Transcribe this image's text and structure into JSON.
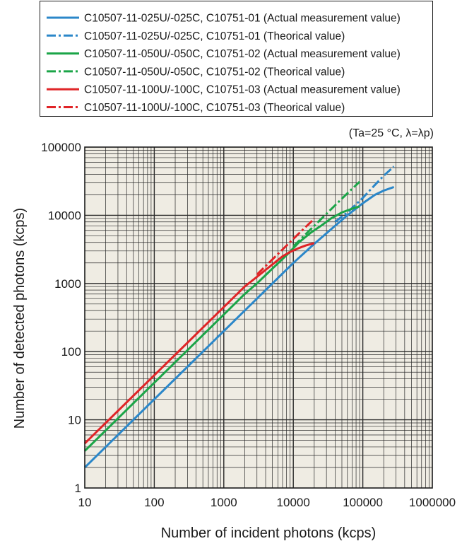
{
  "chart_data": {
    "type": "line",
    "xscale": "log",
    "yscale": "log",
    "xlim": [
      10,
      1000000
    ],
    "ylim": [
      1,
      100000
    ],
    "grid": true,
    "legend_position": "top",
    "xlabel": "Number of incident photons (kcps)",
    "ylabel": "Number of detected photons (kcps)",
    "condition": "(Ta=25 °C, λ=λp)",
    "xticks": [
      "10",
      "100",
      "1000",
      "10000",
      "100000",
      "1000000"
    ],
    "yticks": [
      "1",
      "10",
      "100",
      "1000",
      "10000",
      "100000"
    ],
    "colors": {
      "background": "#efece3",
      "blue": "#2b87c9",
      "green": "#1ba548",
      "red": "#e02427"
    },
    "series": [
      {
        "name": "C10507-11-025U/-025C, C10751-01 (Actual measurement value)",
        "color": "#2b87c9",
        "dash": "solid",
        "points": [
          [
            10,
            2.0
          ],
          [
            100,
            20
          ],
          [
            1000,
            200
          ],
          [
            5000,
            1000
          ],
          [
            10000,
            2000
          ],
          [
            20000,
            3800
          ],
          [
            40000,
            7000
          ],
          [
            60000,
            10000
          ],
          [
            100000,
            15000
          ],
          [
            150000,
            20000
          ],
          [
            200000,
            23000
          ],
          [
            280000,
            26000
          ]
        ]
      },
      {
        "name": "C10507-11-025U/-025C, C10751-01 (Theorical value)",
        "color": "#2b87c9",
        "dash": "dashdot",
        "points": [
          [
            40000,
            8000
          ],
          [
            60000,
            11000
          ],
          [
            100000,
            18000
          ],
          [
            150000,
            28000
          ],
          [
            200000,
            38000
          ],
          [
            280000,
            52000
          ]
        ]
      },
      {
        "name": "C10507-11-050U/-050C, C10751-02 (Actual measurement value)",
        "color": "#1ba548",
        "dash": "solid",
        "points": [
          [
            10,
            3.5
          ],
          [
            100,
            35
          ],
          [
            1000,
            350
          ],
          [
            2000,
            700
          ],
          [
            3000,
            1000
          ],
          [
            5000,
            1650
          ],
          [
            8000,
            2600
          ],
          [
            12000,
            4000
          ],
          [
            18000,
            5600
          ],
          [
            25000,
            7000
          ],
          [
            35000,
            9000
          ],
          [
            50000,
            11000
          ],
          [
            70000,
            12500
          ],
          [
            90000,
            13500
          ]
        ]
      },
      {
        "name": "C10507-11-050U/-050C, C10751-02 (Theorical value)",
        "color": "#1ba548",
        "dash": "dashdot",
        "points": [
          [
            10000,
            3500
          ],
          [
            20000,
            7000
          ],
          [
            40000,
            14000
          ],
          [
            60000,
            21000
          ],
          [
            90000,
            31000
          ]
        ]
      },
      {
        "name": "C10507-11-100U/-100C, C10751-03 (Actual measurement value)",
        "color": "#e02427",
        "dash": "solid",
        "points": [
          [
            10,
            4.5
          ],
          [
            100,
            45
          ],
          [
            1000,
            450
          ],
          [
            2000,
            900
          ],
          [
            3000,
            1250
          ],
          [
            5000,
            1900
          ],
          [
            7000,
            2500
          ],
          [
            9000,
            2900
          ],
          [
            12000,
            3300
          ],
          [
            15000,
            3600
          ],
          [
            20000,
            3900
          ]
        ]
      },
      {
        "name": "C10507-11-100U/-100C, C10751-03 (Theorical value)",
        "color": "#e02427",
        "dash": "dashdot",
        "points": [
          [
            3000,
            1350
          ],
          [
            5000,
            2250
          ],
          [
            8000,
            3600
          ],
          [
            12000,
            5400
          ],
          [
            18000,
            8000
          ],
          [
            20000,
            9000
          ]
        ]
      }
    ]
  }
}
